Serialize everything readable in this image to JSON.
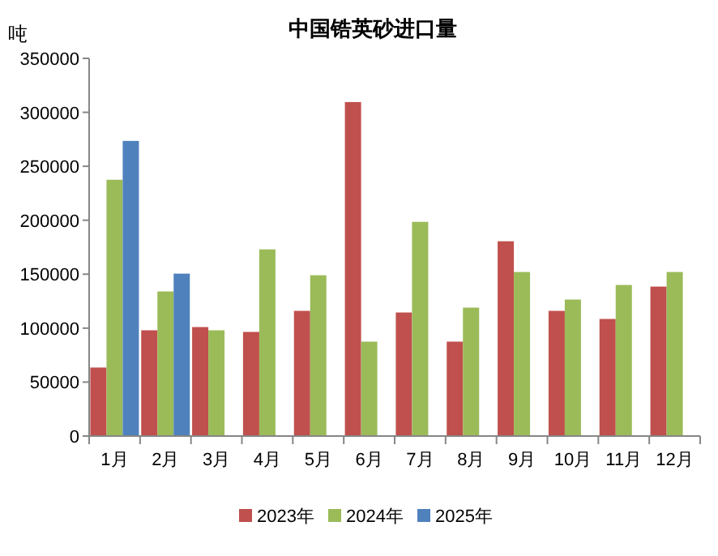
{
  "chart_data": {
    "type": "bar",
    "title": "中国锆英砂进口量",
    "ylabel": "吨",
    "categories": [
      "1月",
      "2月",
      "3月",
      "4月",
      "5月",
      "6月",
      "7月",
      "8月",
      "9月",
      "10月",
      "11月",
      "12月"
    ],
    "series": [
      {
        "name": "2023年",
        "color": "#c0504d",
        "values": [
          63500,
          98000,
          101000,
          96500,
          116000,
          309500,
          114500,
          87500,
          180500,
          116000,
          108500,
          138500
        ]
      },
      {
        "name": "2024年",
        "color": "#9bbb59",
        "values": [
          237500,
          134000,
          98000,
          173000,
          149000,
          87500,
          198500,
          119000,
          152000,
          126500,
          140000,
          152000
        ]
      },
      {
        "name": "2025年",
        "color": "#4f81bd",
        "values": [
          273500,
          150500,
          null,
          null,
          null,
          null,
          null,
          null,
          null,
          null,
          null,
          null
        ]
      }
    ],
    "ylim": [
      0,
      350000
    ],
    "yticks": [
      0,
      50000,
      100000,
      150000,
      200000,
      250000,
      300000,
      350000
    ],
    "grid": false,
    "legend": "bottom"
  }
}
